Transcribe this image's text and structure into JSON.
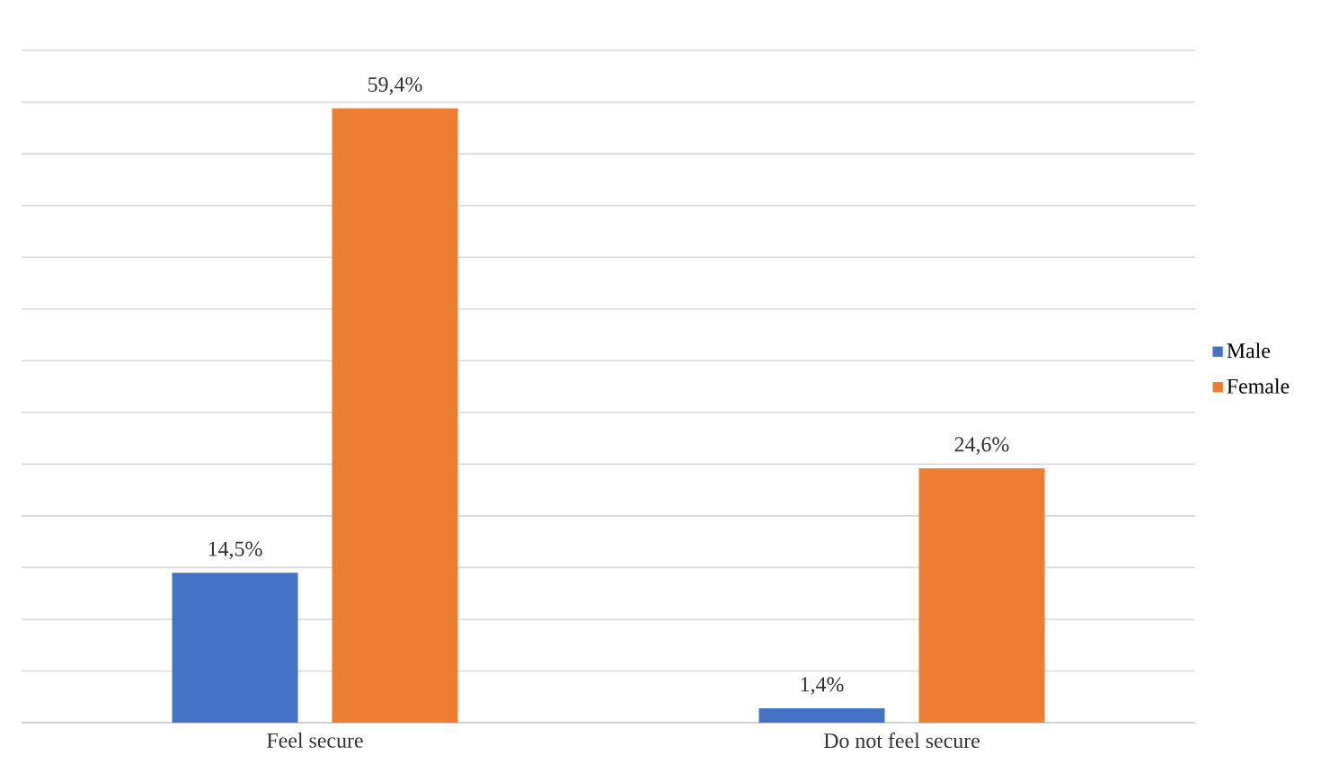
{
  "chart_data": {
    "type": "bar",
    "categories": [
      "Feel secure",
      "Do not feel secure"
    ],
    "series": [
      {
        "name": "Male",
        "color": "#4472c4",
        "values": [
          14.5,
          1.4
        ],
        "value_labels": [
          "14,5%",
          "1,4%"
        ]
      },
      {
        "name": "Female",
        "color": "#ed7d31",
        "values": [
          59.4,
          24.6
        ],
        "value_labels": [
          "59,4%",
          "24,6%"
        ]
      }
    ],
    "tick_labels": "x",
    "grid": "y",
    "legend": "right"
  }
}
